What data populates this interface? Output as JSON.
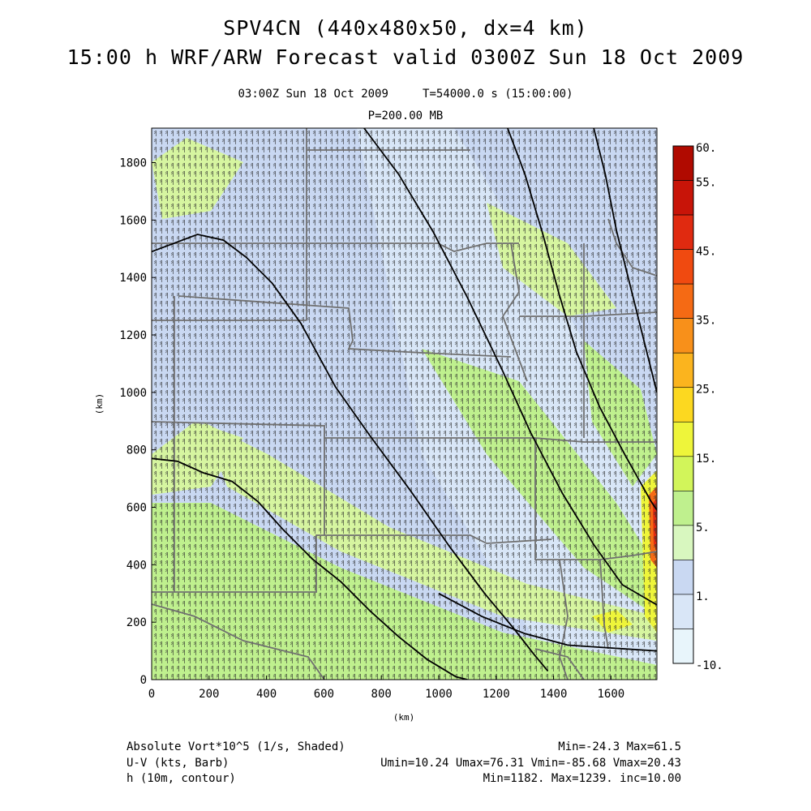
{
  "header": {
    "title_line1": "SPV4CN (440x480x50, dx=4 km)",
    "title_line2": "15:00 h WRF/ARW Forecast valid 0300Z Sun 18 Oct 2009",
    "valid_line": "03:00Z Sun 18 Oct 2009     T=54000.0 s (15:00:00)",
    "level_line": "P=200.00 MB"
  },
  "colors": {
    "shade_lt_blue": "#e8f5fb",
    "shade_blue": "#c9d8f2",
    "shade_green_lt": "#d8f7bf",
    "shade_green": "#bff08e",
    "shade_yellow_green": "#e6f55a",
    "shade_yellow": "#fbe020",
    "shade_orange": "#f5a020",
    "shade_red": "#e82a10",
    "shade_dark_red": "#b00a00",
    "state_border": "#707070",
    "contour": "#000000"
  },
  "chart_data": {
    "type": "heatmap",
    "xlabel": "(km)",
    "ylabel": "(km)",
    "xlim": [
      0,
      1760
    ],
    "ylim": [
      0,
      1920
    ],
    "xticks": [
      "0",
      "200",
      "400",
      "600",
      "800",
      "1000",
      "1200",
      "1400",
      "1600"
    ],
    "yticks": [
      "0",
      "200",
      "400",
      "600",
      "800",
      "1000",
      "1200",
      "1400",
      "1600",
      "1800"
    ],
    "colorbar": {
      "labels": [
        "60.",
        "55.",
        "45.",
        "35.",
        "25.",
        "15.",
        "5.",
        "1.",
        "-10."
      ],
      "bins": [
        {
          "from": 55,
          "to": 60,
          "color": "#b00a00"
        },
        {
          "from": 50,
          "to": 55,
          "color": "#c81408"
        },
        {
          "from": 45,
          "to": 50,
          "color": "#e02a10"
        },
        {
          "from": 40,
          "to": 45,
          "color": "#f04a10"
        },
        {
          "from": 35,
          "to": 40,
          "color": "#f56a14"
        },
        {
          "from": 30,
          "to": 35,
          "color": "#f8901a"
        },
        {
          "from": 25,
          "to": 30,
          "color": "#fbb41e"
        },
        {
          "from": 20,
          "to": 25,
          "color": "#fcd820"
        },
        {
          "from": 15,
          "to": 20,
          "color": "#eef53a"
        },
        {
          "from": 10,
          "to": 15,
          "color": "#d2f55a"
        },
        {
          "from": 5,
          "to": 10,
          "color": "#bff08e"
        },
        {
          "from": 2,
          "to": 5,
          "color": "#d8f7bf"
        },
        {
          "from": 1,
          "to": 2,
          "color": "#c9d8f2"
        },
        {
          "from": -5,
          "to": 1,
          "color": "#d9e6f7"
        },
        {
          "from": -10,
          "to": -5,
          "color": "#e8f5fb"
        }
      ]
    },
    "contours": [
      {
        "level": 1182,
        "points": [
          [
            0,
            1490
          ],
          [
            80,
            1520
          ],
          [
            160,
            1550
          ],
          [
            250,
            1530
          ],
          [
            330,
            1470
          ],
          [
            420,
            1380
          ],
          [
            520,
            1240
          ],
          [
            640,
            1020
          ],
          [
            760,
            850
          ],
          [
            900,
            660
          ],
          [
            1040,
            460
          ],
          [
            1160,
            300
          ],
          [
            1260,
            180
          ],
          [
            1330,
            90
          ],
          [
            1380,
            30
          ]
        ]
      },
      {
        "level": 1192,
        "points": [
          [
            0,
            770
          ],
          [
            90,
            760
          ],
          [
            180,
            720
          ],
          [
            280,
            690
          ],
          [
            370,
            620
          ],
          [
            460,
            520
          ],
          [
            560,
            420
          ],
          [
            660,
            340
          ],
          [
            760,
            240
          ],
          [
            860,
            150
          ],
          [
            960,
            70
          ],
          [
            1060,
            10
          ],
          [
            1100,
            0
          ]
        ]
      },
      {
        "level": 1202,
        "points": [
          [
            740,
            1920
          ],
          [
            860,
            1760
          ],
          [
            980,
            1560
          ],
          [
            1100,
            1330
          ],
          [
            1220,
            1080
          ],
          [
            1320,
            860
          ],
          [
            1430,
            650
          ],
          [
            1540,
            470
          ],
          [
            1640,
            330
          ],
          [
            1760,
            260
          ]
        ]
      },
      {
        "level": 1212,
        "points": [
          [
            1240,
            1920
          ],
          [
            1300,
            1760
          ],
          [
            1360,
            1560
          ],
          [
            1420,
            1340
          ],
          [
            1480,
            1140
          ],
          [
            1560,
            950
          ],
          [
            1650,
            780
          ],
          [
            1740,
            620
          ],
          [
            1760,
            590
          ]
        ]
      },
      {
        "level": 1222,
        "points": [
          [
            1540,
            1920
          ],
          [
            1580,
            1760
          ],
          [
            1620,
            1560
          ],
          [
            1670,
            1360
          ],
          [
            1720,
            1160
          ],
          [
            1760,
            1000
          ]
        ]
      },
      {
        "level": 1232,
        "points": [
          [
            1000,
            300
          ],
          [
            1150,
            220
          ],
          [
            1300,
            160
          ],
          [
            1450,
            120
          ],
          [
            1600,
            110
          ],
          [
            1760,
            100
          ]
        ]
      }
    ]
  },
  "footer": {
    "shaded_label": "Absolute Vort*10^5 (1/s, Shaded)",
    "shaded_stats": "Min=-24.3 Max=61.5",
    "barb_label": "U-V (kts, Barb)",
    "barb_stats": "Umin=10.24 Umax=76.31 Vmin=-85.68 Vmax=20.43",
    "contour_label": "h (10m, contour)",
    "contour_stats": "Min=1182. Max=1239. inc=10.00"
  }
}
